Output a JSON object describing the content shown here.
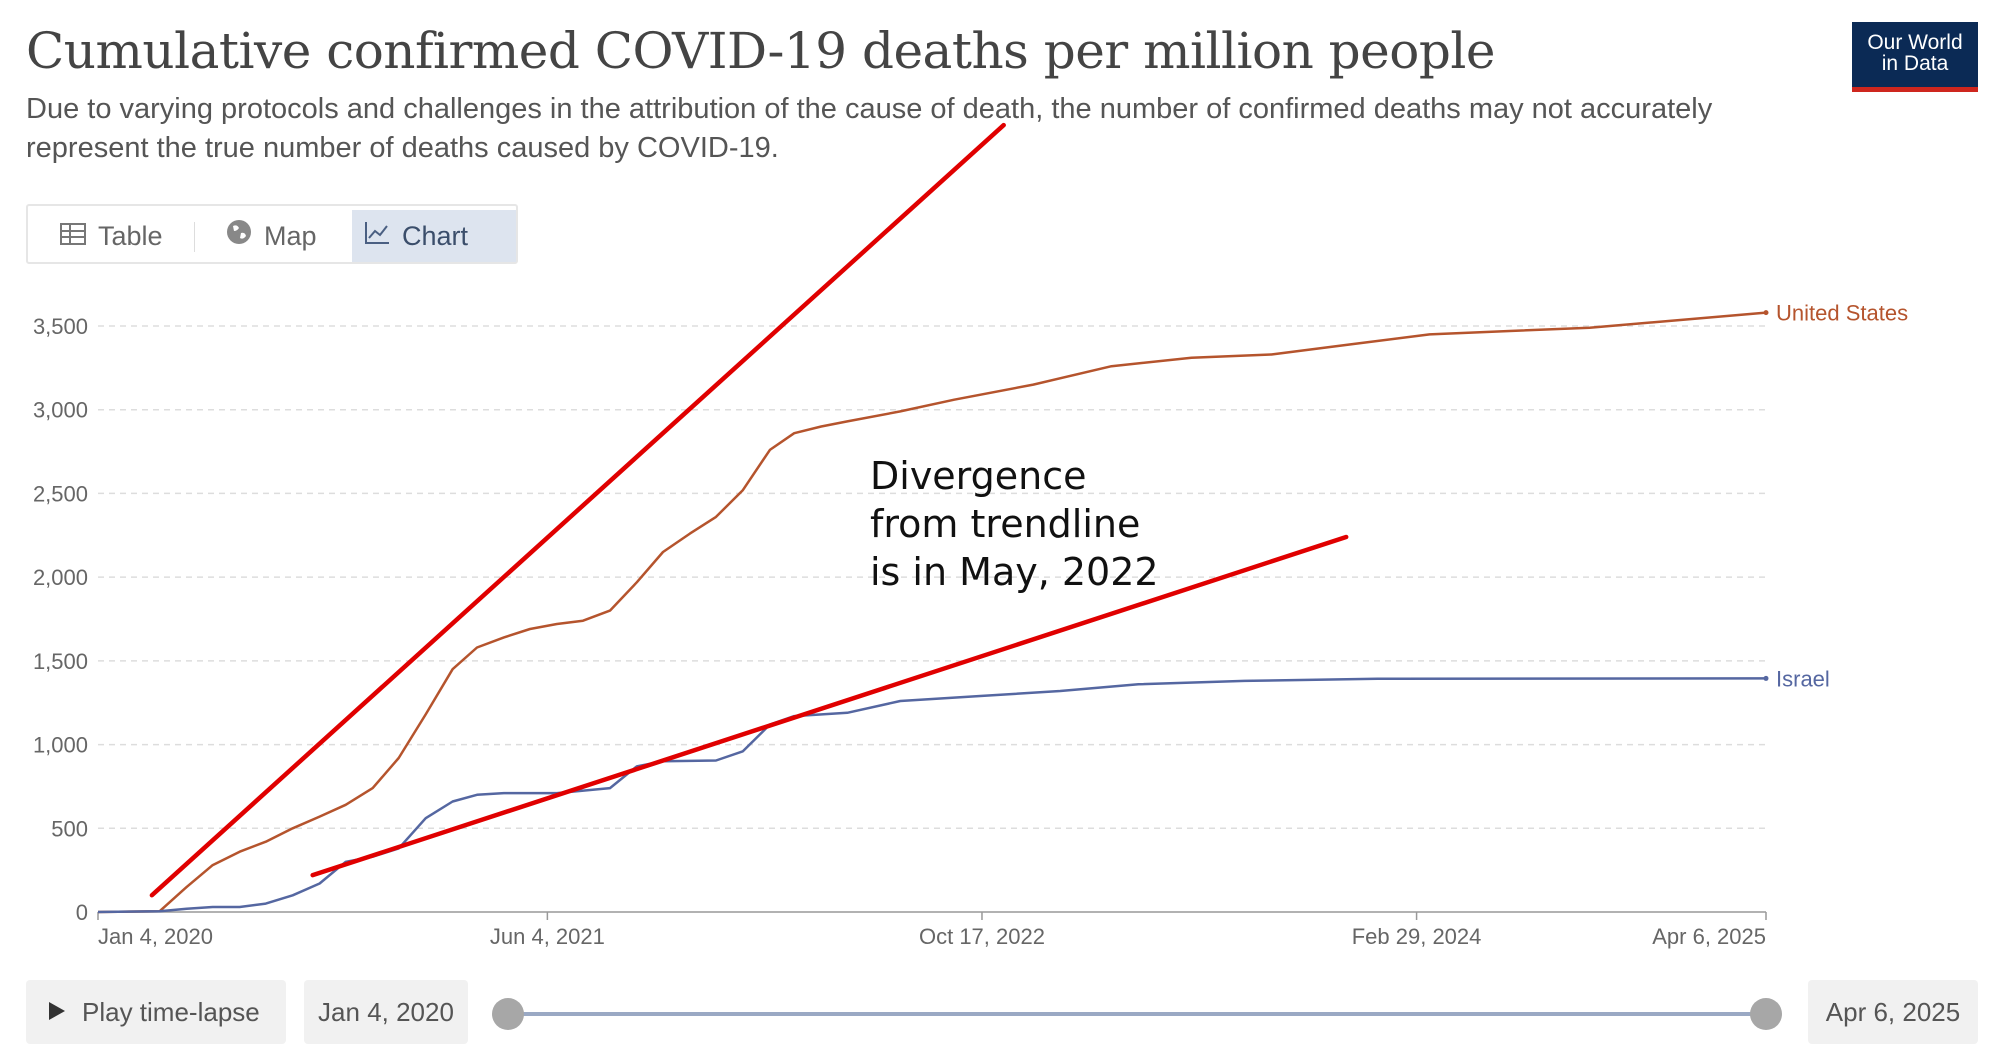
{
  "header": {
    "title": "Cumulative confirmed COVID-19 deaths per million people",
    "subtitle": "Due to varying protocols and challenges in the attribution of the cause of death, the number of confirmed deaths may not accurately represent the true number of deaths caused by COVID-19.",
    "logo_line1": "Our World",
    "logo_line2": "in Data"
  },
  "tabs": [
    {
      "label": "Table",
      "icon": "table-icon",
      "active": false
    },
    {
      "label": "Map",
      "icon": "globe-icon",
      "active": false
    },
    {
      "label": "Chart",
      "icon": "line-chart-icon",
      "active": true
    }
  ],
  "annotation": "Divergence\nfrom trendline\nis in May, 2022",
  "timeline": {
    "play_label": "Play time-lapse",
    "start_date": "Jan 4, 2020",
    "end_date": "Apr 6, 2025"
  },
  "colors": {
    "us": "#b5542d",
    "israel": "#5567a1",
    "trend": "#e00000",
    "grid": "#dddddd",
    "axis_text": "#666666"
  },
  "chart_data": {
    "type": "line",
    "title": "Cumulative confirmed COVID-19 deaths per million people",
    "ylim": [
      0,
      3500
    ],
    "y_ticks": [
      0,
      500,
      1000,
      1500,
      2000,
      2500,
      3000,
      3500
    ],
    "y_tick_labels": [
      "0",
      "500",
      "1,000",
      "1,500",
      "2,000",
      "2,500",
      "3,000",
      "3,500"
    ],
    "x_range": [
      "2020-01-04",
      "2025-04-06"
    ],
    "x_ticks": [
      "2020-01-04",
      "2021-06-04",
      "2022-10-17",
      "2024-02-29",
      "2025-04-06"
    ],
    "x_tick_labels": [
      "Jan 4, 2020",
      "Jun 4, 2021",
      "Oct 17, 2022",
      "Feb 29, 2024",
      "Apr 6, 2025"
    ],
    "grid": true,
    "legend": "inline labels at right",
    "series": [
      {
        "name": "United States",
        "points": [
          [
            "2020-01-04",
            0
          ],
          [
            "2020-03-15",
            5
          ],
          [
            "2020-04-15",
            150
          ],
          [
            "2020-05-15",
            280
          ],
          [
            "2020-06-15",
            360
          ],
          [
            "2020-07-15",
            420
          ],
          [
            "2020-08-15",
            500
          ],
          [
            "2020-09-15",
            570
          ],
          [
            "2020-10-15",
            640
          ],
          [
            "2020-11-15",
            740
          ],
          [
            "2020-12-15",
            920
          ],
          [
            "2021-01-15",
            1180
          ],
          [
            "2021-02-15",
            1450
          ],
          [
            "2021-03-15",
            1580
          ],
          [
            "2021-04-15",
            1640
          ],
          [
            "2021-05-15",
            1690
          ],
          [
            "2021-06-15",
            1720
          ],
          [
            "2021-07-15",
            1740
          ],
          [
            "2021-08-15",
            1800
          ],
          [
            "2021-09-15",
            1970
          ],
          [
            "2021-10-15",
            2150
          ],
          [
            "2021-11-15",
            2260
          ],
          [
            "2021-12-15",
            2360
          ],
          [
            "2022-01-15",
            2520
          ],
          [
            "2022-02-15",
            2760
          ],
          [
            "2022-03-15",
            2860
          ],
          [
            "2022-04-15",
            2900
          ],
          [
            "2022-05-15",
            2930
          ],
          [
            "2022-07-15",
            2990
          ],
          [
            "2022-09-15",
            3060
          ],
          [
            "2022-12-15",
            3150
          ],
          [
            "2023-03-15",
            3260
          ],
          [
            "2023-06-15",
            3310
          ],
          [
            "2023-09-15",
            3330
          ],
          [
            "2023-12-15",
            3390
          ],
          [
            "2024-03-15",
            3450
          ],
          [
            "2024-06-15",
            3470
          ],
          [
            "2024-09-15",
            3490
          ],
          [
            "2024-12-15",
            3530
          ],
          [
            "2025-04-06",
            3580
          ]
        ]
      },
      {
        "name": "Israel",
        "points": [
          [
            "2020-01-04",
            0
          ],
          [
            "2020-03-15",
            5
          ],
          [
            "2020-04-15",
            20
          ],
          [
            "2020-05-15",
            30
          ],
          [
            "2020-06-15",
            30
          ],
          [
            "2020-07-15",
            50
          ],
          [
            "2020-08-15",
            100
          ],
          [
            "2020-09-15",
            170
          ],
          [
            "2020-10-15",
            300
          ],
          [
            "2020-11-15",
            330
          ],
          [
            "2020-12-15",
            380
          ],
          [
            "2021-01-15",
            560
          ],
          [
            "2021-02-15",
            660
          ],
          [
            "2021-03-15",
            700
          ],
          [
            "2021-04-15",
            710
          ],
          [
            "2021-06-15",
            710
          ],
          [
            "2021-08-15",
            740
          ],
          [
            "2021-09-15",
            870
          ],
          [
            "2021-10-15",
            900
          ],
          [
            "2021-12-15",
            905
          ],
          [
            "2022-01-15",
            960
          ],
          [
            "2022-02-15",
            1120
          ],
          [
            "2022-03-15",
            1170
          ],
          [
            "2022-05-15",
            1190
          ],
          [
            "2022-07-15",
            1260
          ],
          [
            "2022-10-15",
            1290
          ],
          [
            "2023-01-15",
            1320
          ],
          [
            "2023-04-15",
            1360
          ],
          [
            "2023-08-15",
            1380
          ],
          [
            "2024-01-15",
            1393
          ],
          [
            "2025-04-06",
            1395
          ]
        ]
      }
    ],
    "overlay_lines": [
      {
        "from": [
          "2020-03-06",
          100
        ],
        "to": [
          "2022-11-11",
          4700
        ]
      },
      {
        "from": [
          "2020-09-07",
          220
        ],
        "to": [
          "2023-12-10",
          2240
        ]
      }
    ]
  }
}
